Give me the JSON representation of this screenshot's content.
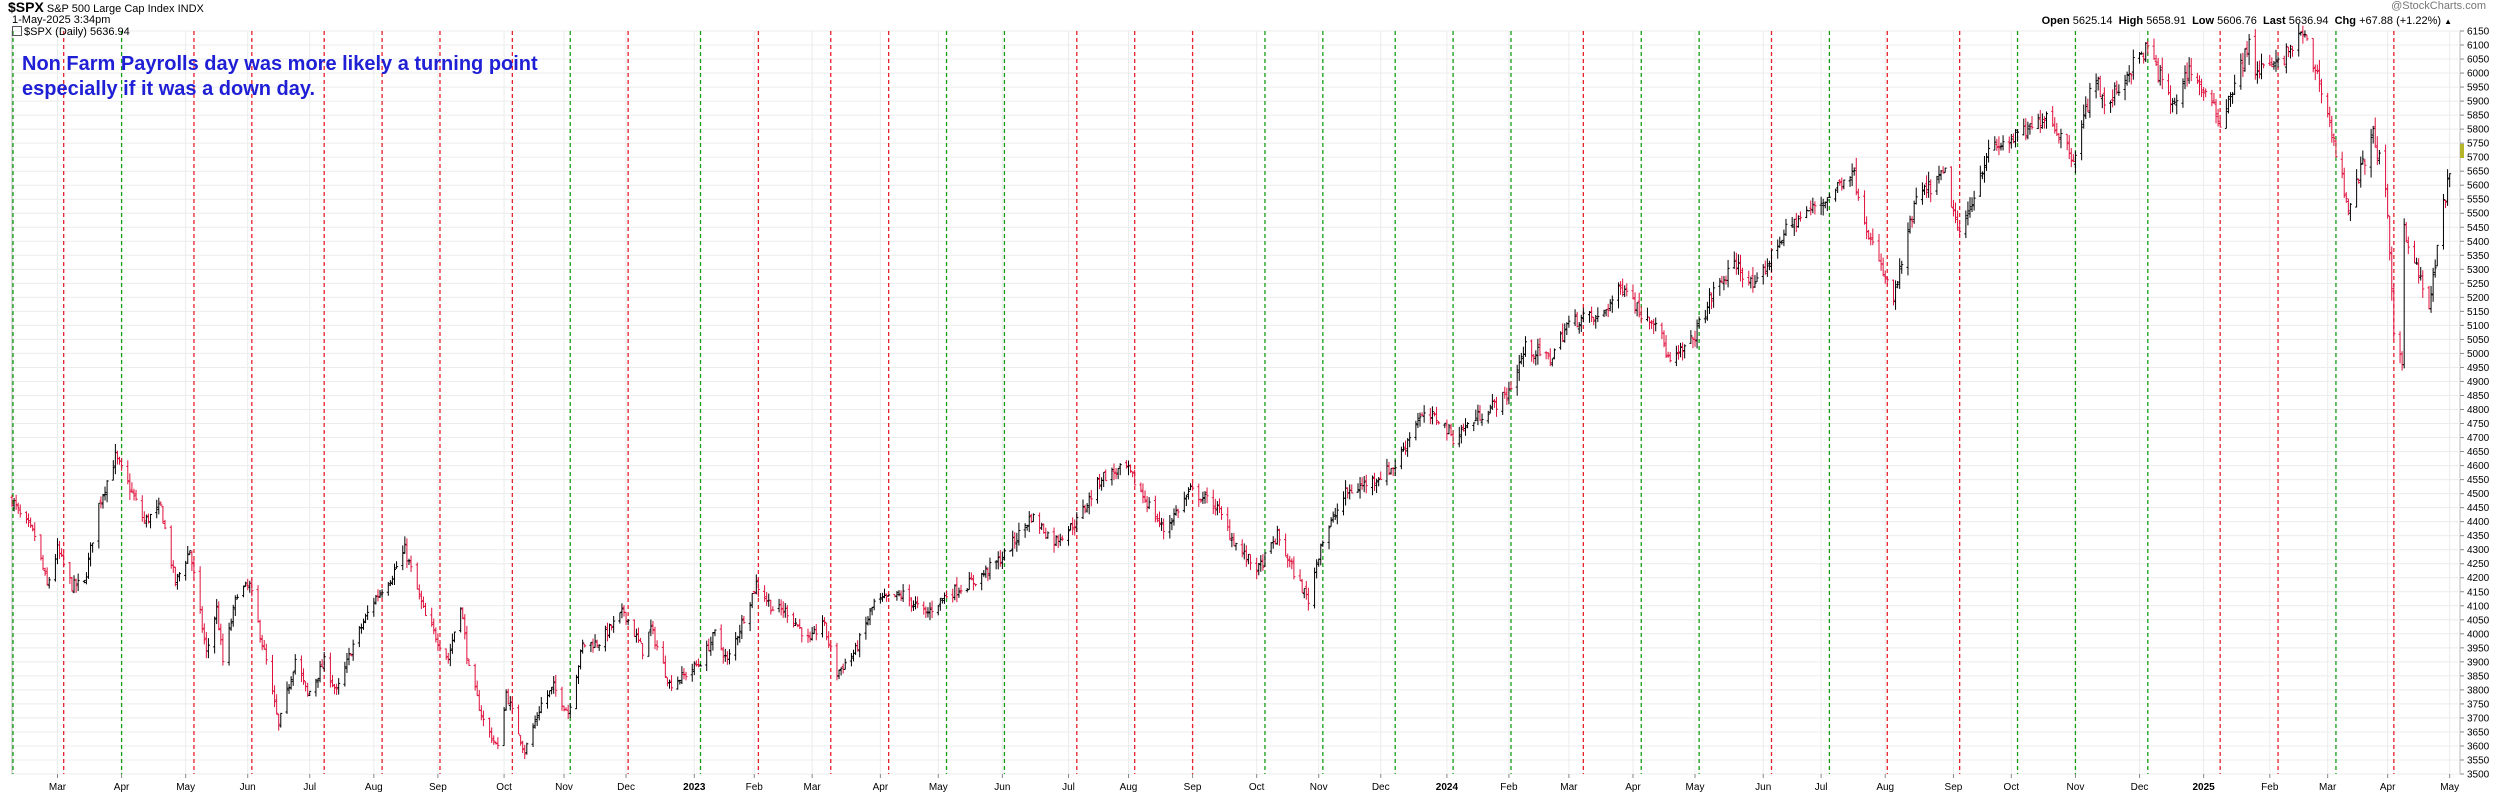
{
  "header": {
    "symbol": "$SPX",
    "name": "S&P 500 Large Cap Index",
    "exchange": "INDX",
    "datetime": "1-May-2025 3:34pm",
    "legend": "$SPX (Daily) 5636.94",
    "watermark": "@StockCharts.com",
    "quote": {
      "open_label": "Open",
      "open": "5625.14",
      "high_label": "High",
      "high": "5658.91",
      "low_label": "Low",
      "low": "5606.76",
      "last_label": "Last",
      "last": "5636.94",
      "chg_label": "Chg",
      "chg": "+67.88 (+1.22%)"
    }
  },
  "annotation": {
    "line1": "Non Farm Payrolls day was more likely a turning point",
    "line2": "especially if it was a down day."
  },
  "colors": {
    "up": "#000000",
    "down": "#e0103c",
    "nfp_up": "#12a012",
    "nfp_down": "#e8202a",
    "note": "#1f1fd6"
  },
  "chart_data": {
    "type": "ohlc",
    "title": "$SPX S&P 500 Large Cap Index",
    "ylim": [
      3500,
      6150
    ],
    "y_ticks": [
      3500,
      3550,
      3600,
      3650,
      3700,
      3750,
      3800,
      3850,
      3900,
      3950,
      4000,
      4050,
      4100,
      4150,
      4200,
      4250,
      4300,
      4350,
      4400,
      4450,
      4500,
      4550,
      4600,
      4650,
      4700,
      4750,
      4800,
      4850,
      4900,
      4950,
      5000,
      5050,
      5100,
      5150,
      5200,
      5250,
      5300,
      5350,
      5400,
      5450,
      5500,
      5550,
      5600,
      5650,
      5700,
      5750,
      5800,
      5850,
      5900,
      5950,
      6000,
      6050,
      6100,
      6150
    ],
    "x_range": [
      "2022-02-07",
      "2025-05-06"
    ],
    "x_ticks": [
      {
        "label": "Mar",
        "date": "2022-03-01"
      },
      {
        "label": "Apr",
        "date": "2022-04-01"
      },
      {
        "label": "May",
        "date": "2022-05-02"
      },
      {
        "label": "Jun",
        "date": "2022-06-01"
      },
      {
        "label": "Jul",
        "date": "2022-07-01"
      },
      {
        "label": "Aug",
        "date": "2022-08-01"
      },
      {
        "label": "Sep",
        "date": "2022-09-01"
      },
      {
        "label": "Oct",
        "date": "2022-10-03"
      },
      {
        "label": "Nov",
        "date": "2022-11-01"
      },
      {
        "label": "Dec",
        "date": "2022-12-01"
      },
      {
        "label": "2023",
        "date": "2023-01-03"
      },
      {
        "label": "Feb",
        "date": "2023-02-01"
      },
      {
        "label": "Mar",
        "date": "2023-03-01"
      },
      {
        "label": "Apr",
        "date": "2023-04-03"
      },
      {
        "label": "May",
        "date": "2023-05-01"
      },
      {
        "label": "Jun",
        "date": "2023-06-01"
      },
      {
        "label": "Jul",
        "date": "2023-07-03"
      },
      {
        "label": "Aug",
        "date": "2023-08-01"
      },
      {
        "label": "Sep",
        "date": "2023-09-01"
      },
      {
        "label": "Oct",
        "date": "2023-10-02"
      },
      {
        "label": "Nov",
        "date": "2023-11-01"
      },
      {
        "label": "Dec",
        "date": "2023-12-01"
      },
      {
        "label": "2024",
        "date": "2024-01-02"
      },
      {
        "label": "Feb",
        "date": "2024-02-01"
      },
      {
        "label": "Mar",
        "date": "2024-03-01"
      },
      {
        "label": "Apr",
        "date": "2024-04-01"
      },
      {
        "label": "May",
        "date": "2024-05-01"
      },
      {
        "label": "Jun",
        "date": "2024-06-03"
      },
      {
        "label": "Jul",
        "date": "2024-07-01"
      },
      {
        "label": "Aug",
        "date": "2024-08-01"
      },
      {
        "label": "Sep",
        "date": "2024-09-03"
      },
      {
        "label": "Oct",
        "date": "2024-10-01"
      },
      {
        "label": "Nov",
        "date": "2024-11-01"
      },
      {
        "label": "Dec",
        "date": "2024-12-02"
      },
      {
        "label": "2025",
        "date": "2025-01-02"
      },
      {
        "label": "Feb",
        "date": "2025-02-03"
      },
      {
        "label": "Mar",
        "date": "2025-03-03"
      },
      {
        "label": "Apr",
        "date": "2025-04-01"
      },
      {
        "label": "May",
        "date": "2025-05-01"
      }
    ],
    "nfp_markers": [
      {
        "date": "2022-02-04",
        "dir": "up"
      },
      {
        "date": "2022-03-04",
        "dir": "down"
      },
      {
        "date": "2022-04-01",
        "dir": "up"
      },
      {
        "date": "2022-05-06",
        "dir": "down"
      },
      {
        "date": "2022-06-03",
        "dir": "down"
      },
      {
        "date": "2022-07-08",
        "dir": "down"
      },
      {
        "date": "2022-08-05",
        "dir": "down"
      },
      {
        "date": "2022-09-02",
        "dir": "down"
      },
      {
        "date": "2022-10-07",
        "dir": "down"
      },
      {
        "date": "2022-11-04",
        "dir": "up"
      },
      {
        "date": "2022-12-02",
        "dir": "down"
      },
      {
        "date": "2023-01-06",
        "dir": "up"
      },
      {
        "date": "2023-02-03",
        "dir": "down"
      },
      {
        "date": "2023-03-10",
        "dir": "down"
      },
      {
        "date": "2023-04-07",
        "dir": "down"
      },
      {
        "date": "2023-05-05",
        "dir": "up"
      },
      {
        "date": "2023-06-02",
        "dir": "up"
      },
      {
        "date": "2023-07-07",
        "dir": "down"
      },
      {
        "date": "2023-08-04",
        "dir": "down"
      },
      {
        "date": "2023-09-01",
        "dir": "down"
      },
      {
        "date": "2023-10-06",
        "dir": "up"
      },
      {
        "date": "2023-11-03",
        "dir": "up"
      },
      {
        "date": "2023-12-08",
        "dir": "up"
      },
      {
        "date": "2024-01-05",
        "dir": "up"
      },
      {
        "date": "2024-02-02",
        "dir": "up"
      },
      {
        "date": "2024-03-08",
        "dir": "down"
      },
      {
        "date": "2024-04-05",
        "dir": "up"
      },
      {
        "date": "2024-05-03",
        "dir": "up"
      },
      {
        "date": "2024-06-07",
        "dir": "down"
      },
      {
        "date": "2024-07-05",
        "dir": "up"
      },
      {
        "date": "2024-08-02",
        "dir": "down"
      },
      {
        "date": "2024-09-06",
        "dir": "down"
      },
      {
        "date": "2024-10-04",
        "dir": "up"
      },
      {
        "date": "2024-11-01",
        "dir": "up"
      },
      {
        "date": "2024-12-06",
        "dir": "up"
      },
      {
        "date": "2025-01-10",
        "dir": "down"
      },
      {
        "date": "2025-02-07",
        "dir": "down"
      },
      {
        "date": "2025-03-07",
        "dir": "up"
      },
      {
        "date": "2025-04-04",
        "dir": "down"
      }
    ],
    "anchors": [
      [
        "2022-02-07",
        4480
      ],
      [
        "2022-02-11",
        4420
      ],
      [
        "2022-02-18",
        4350
      ],
      [
        "2022-02-24",
        4170
      ],
      [
        "2022-03-01",
        4300
      ],
      [
        "2022-03-08",
        4170
      ],
      [
        "2022-03-14",
        4180
      ],
      [
        "2022-03-21",
        4460
      ],
      [
        "2022-03-29",
        4630
      ],
      [
        "2022-04-05",
        4520
      ],
      [
        "2022-04-12",
        4400
      ],
      [
        "2022-04-20",
        4450
      ],
      [
        "2022-04-27",
        4180
      ],
      [
        "2022-05-04",
        4300
      ],
      [
        "2022-05-12",
        3930
      ],
      [
        "2022-05-17",
        4090
      ],
      [
        "2022-05-20",
        3900
      ],
      [
        "2022-05-27",
        4150
      ],
      [
        "2022-06-02",
        4170
      ],
      [
        "2022-06-10",
        3900
      ],
      [
        "2022-06-16",
        3670
      ],
      [
        "2022-06-24",
        3910
      ],
      [
        "2022-06-30",
        3780
      ],
      [
        "2022-07-08",
        3900
      ],
      [
        "2022-07-14",
        3790
      ],
      [
        "2022-07-22",
        3960
      ],
      [
        "2022-08-01",
        4120
      ],
      [
        "2022-08-10",
        4210
      ],
      [
        "2022-08-16",
        4300
      ],
      [
        "2022-08-26",
        4060
      ],
      [
        "2022-09-06",
        3910
      ],
      [
        "2022-09-12",
        4110
      ],
      [
        "2022-09-16",
        3870
      ],
      [
        "2022-09-23",
        3690
      ],
      [
        "2022-09-30",
        3590
      ],
      [
        "2022-10-04",
        3790
      ],
      [
        "2022-10-13",
        3580
      ],
      [
        "2022-10-21",
        3750
      ],
      [
        "2022-10-27",
        3810
      ],
      [
        "2022-11-03",
        3720
      ],
      [
        "2022-11-10",
        3960
      ],
      [
        "2022-11-18",
        3970
      ],
      [
        "2022-11-30",
        4080
      ],
      [
        "2022-12-09",
        3940
      ],
      [
        "2022-12-13",
        4020
      ],
      [
        "2022-12-22",
        3820
      ],
      [
        "2022-12-29",
        3850
      ],
      [
        "2023-01-06",
        3900
      ],
      [
        "2023-01-13",
        4000
      ],
      [
        "2023-01-19",
        3900
      ],
      [
        "2023-02-02",
        4180
      ],
      [
        "2023-02-10",
        4090
      ],
      [
        "2023-02-17",
        4080
      ],
      [
        "2023-02-28",
        3970
      ],
      [
        "2023-03-06",
        4050
      ],
      [
        "2023-03-13",
        3860
      ],
      [
        "2023-03-22",
        3940
      ],
      [
        "2023-03-31",
        4110
      ],
      [
        "2023-04-14",
        4140
      ],
      [
        "2023-04-25",
        4070
      ],
      [
        "2023-05-05",
        4140
      ],
      [
        "2023-05-19",
        4190
      ],
      [
        "2023-06-02",
        4280
      ],
      [
        "2023-06-15",
        4420
      ],
      [
        "2023-06-26",
        4330
      ],
      [
        "2023-07-07",
        4400
      ],
      [
        "2023-07-19",
        4560
      ],
      [
        "2023-07-31",
        4590
      ],
      [
        "2023-08-10",
        4470
      ],
      [
        "2023-08-18",
        4370
      ],
      [
        "2023-08-31",
        4510
      ],
      [
        "2023-09-12",
        4460
      ],
      [
        "2023-09-21",
        4330
      ],
      [
        "2023-09-27",
        4270
      ],
      [
        "2023-10-03",
        4230
      ],
      [
        "2023-10-12",
        4350
      ],
      [
        "2023-10-20",
        4220
      ],
      [
        "2023-10-27",
        4120
      ],
      [
        "2023-11-02",
        4320
      ],
      [
        "2023-11-14",
        4500
      ],
      [
        "2023-11-30",
        4560
      ],
      [
        "2023-12-08",
        4600
      ],
      [
        "2023-12-19",
        4770
      ],
      [
        "2023-12-29",
        4770
      ],
      [
        "2024-01-05",
        4700
      ],
      [
        "2024-01-18",
        4780
      ],
      [
        "2024-01-31",
        4850
      ],
      [
        "2024-02-09",
        5020
      ],
      [
        "2024-02-21",
        4980
      ],
      [
        "2024-02-29",
        5100
      ],
      [
        "2024-03-08",
        5130
      ],
      [
        "2024-03-15",
        5120
      ],
      [
        "2024-03-28",
        5250
      ],
      [
        "2024-04-04",
        5150
      ],
      [
        "2024-04-12",
        5120
      ],
      [
        "2024-04-19",
        4960
      ],
      [
        "2024-04-30",
        5050
      ],
      [
        "2024-05-10",
        5220
      ],
      [
        "2024-05-21",
        5320
      ],
      [
        "2024-05-30",
        5230
      ],
      [
        "2024-06-12",
        5420
      ],
      [
        "2024-06-20",
        5480
      ],
      [
        "2024-07-05",
        5560
      ],
      [
        "2024-07-16",
        5660
      ],
      [
        "2024-07-25",
        5400
      ],
      [
        "2024-08-05",
        5190
      ],
      [
        "2024-08-16",
        5550
      ],
      [
        "2024-08-30",
        5640
      ],
      [
        "2024-09-06",
        5410
      ],
      [
        "2024-09-19",
        5710
      ],
      [
        "2024-09-30",
        5760
      ],
      [
        "2024-10-11",
        5800
      ],
      [
        "2024-10-18",
        5860
      ],
      [
        "2024-10-31",
        5700
      ],
      [
        "2024-11-11",
        6000
      ],
      [
        "2024-11-15",
        5870
      ],
      [
        "2024-11-29",
        6030
      ],
      [
        "2024-12-06",
        6090
      ],
      [
        "2024-12-18",
        5880
      ],
      [
        "2024-12-26",
        6020
      ],
      [
        "2025-01-10",
        5830
      ],
      [
        "2025-01-24",
        6100
      ],
      [
        "2025-01-27",
        6010
      ],
      [
        "2025-02-07",
        6030
      ],
      [
        "2025-02-19",
        6140
      ],
      [
        "2025-02-28",
        5950
      ],
      [
        "2025-03-13",
        5520
      ],
      [
        "2025-03-25",
        5780
      ],
      [
        "2025-03-31",
        5600
      ],
      [
        "2025-04-04",
        5070
      ],
      [
        "2025-04-08",
        4980
      ],
      [
        "2025-04-09",
        5450
      ],
      [
        "2025-04-21",
        5160
      ],
      [
        "2025-04-28",
        5530
      ],
      [
        "2025-05-01",
        5636
      ]
    ]
  }
}
